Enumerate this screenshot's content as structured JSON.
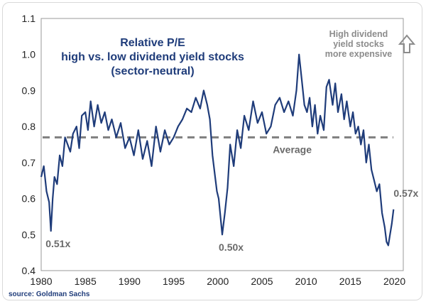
{
  "chart_data": {
    "type": "line",
    "title_lines": [
      "Relative P/E",
      "high vs. low dividend yield stocks",
      "(sector-neutral)"
    ],
    "xlabel": "",
    "ylabel": "",
    "xlim": [
      1980,
      2021
    ],
    "ylim": [
      0.4,
      1.1
    ],
    "x_ticks": [
      1980,
      1985,
      1990,
      1995,
      2000,
      2005,
      2010,
      2015,
      2020
    ],
    "y_ticks": [
      0.4,
      0.5,
      0.6,
      0.7,
      0.8,
      0.9,
      1.0,
      1.1
    ],
    "x_tick_labels": [
      "1980",
      "1985",
      "1990",
      "1995",
      "2000",
      "2005",
      "2010",
      "2015",
      "2020"
    ],
    "y_tick_labels": [
      "0.4",
      "0.5",
      "0.6",
      "0.7",
      "0.8",
      "0.9",
      "1.0",
      "1.1"
    ],
    "average": {
      "value": 0.77,
      "label": "Average"
    },
    "annotations": [
      {
        "text": "0.51x",
        "x": 1980.5,
        "y": 0.465
      },
      {
        "text": "0.50x",
        "x": 2000.1,
        "y": 0.455
      },
      {
        "text": "0.57x",
        "x": 2019.9,
        "y": 0.605
      }
    ],
    "note_lines": [
      "High dividend",
      "yield stocks",
      "more expensive"
    ],
    "note_icon": "up-arrow-icon",
    "line_color": "#1f3c7a",
    "average_color": "#7f7f7f",
    "series": [
      {
        "x": [
          1980.0,
          1980.3,
          1980.6,
          1980.9,
          1981.1,
          1981.3,
          1981.5,
          1981.8,
          1982.1,
          1982.4,
          1982.7,
          1983.0,
          1983.3,
          1983.6,
          1984.0,
          1984.3,
          1984.6,
          1985.0,
          1985.3,
          1985.6,
          1986.0,
          1986.4,
          1986.8,
          1987.2,
          1987.6,
          1988.0,
          1988.5,
          1989.0,
          1989.5,
          1990.0,
          1990.5,
          1991.0,
          1991.5,
          1992.0,
          1992.5,
          1993.0,
          1993.5,
          1994.0,
          1994.5,
          1995.0,
          1995.5,
          1996.0,
          1996.5,
          1997.0,
          1997.5,
          1998.0,
          1998.4,
          1998.8,
          1999.1,
          1999.4,
          1999.7,
          1999.9,
          2000.1,
          2000.3,
          2000.5,
          2000.8,
          2001.1,
          2001.4,
          2001.8,
          2002.2,
          2002.6,
          2003.0,
          2003.5,
          2004.0,
          2004.5,
          2005.0,
          2005.5,
          2006.0,
          2006.5,
          2007.0,
          2007.5,
          2008.0,
          2008.5,
          2008.9,
          2009.2,
          2009.5,
          2009.8,
          2010.1,
          2010.4,
          2010.7,
          2011.0,
          2011.3,
          2011.6,
          2012.0,
          2012.3,
          2012.6,
          2013.0,
          2013.3,
          2013.6,
          2014.0,
          2014.3,
          2014.6,
          2015.0,
          2015.3,
          2015.6,
          2015.9,
          2016.2,
          2016.5,
          2016.8,
          2017.1,
          2017.4,
          2017.7,
          2018.0,
          2018.3,
          2018.6,
          2018.9,
          2019.1,
          2019.3,
          2019.5,
          2019.7,
          2019.9
        ],
        "values": [
          0.66,
          0.69,
          0.62,
          0.59,
          0.51,
          0.6,
          0.66,
          0.64,
          0.72,
          0.69,
          0.77,
          0.75,
          0.73,
          0.78,
          0.8,
          0.74,
          0.83,
          0.84,
          0.79,
          0.87,
          0.8,
          0.86,
          0.81,
          0.84,
          0.79,
          0.82,
          0.77,
          0.81,
          0.74,
          0.77,
          0.72,
          0.79,
          0.71,
          0.76,
          0.69,
          0.8,
          0.73,
          0.79,
          0.75,
          0.77,
          0.8,
          0.82,
          0.85,
          0.84,
          0.88,
          0.85,
          0.9,
          0.86,
          0.82,
          0.72,
          0.66,
          0.62,
          0.6,
          0.55,
          0.5,
          0.56,
          0.63,
          0.75,
          0.69,
          0.79,
          0.74,
          0.83,
          0.79,
          0.87,
          0.81,
          0.84,
          0.78,
          0.8,
          0.86,
          0.88,
          0.84,
          0.87,
          0.83,
          0.9,
          1.0,
          0.93,
          0.86,
          0.84,
          0.88,
          0.8,
          0.86,
          0.78,
          0.83,
          0.79,
          0.91,
          0.93,
          0.86,
          0.92,
          0.84,
          0.89,
          0.82,
          0.87,
          0.8,
          0.84,
          0.78,
          0.8,
          0.75,
          0.79,
          0.7,
          0.75,
          0.68,
          0.65,
          0.62,
          0.64,
          0.56,
          0.52,
          0.48,
          0.47,
          0.5,
          0.53,
          0.57
        ]
      }
    ],
    "source": "source: Goldman Sachs"
  }
}
